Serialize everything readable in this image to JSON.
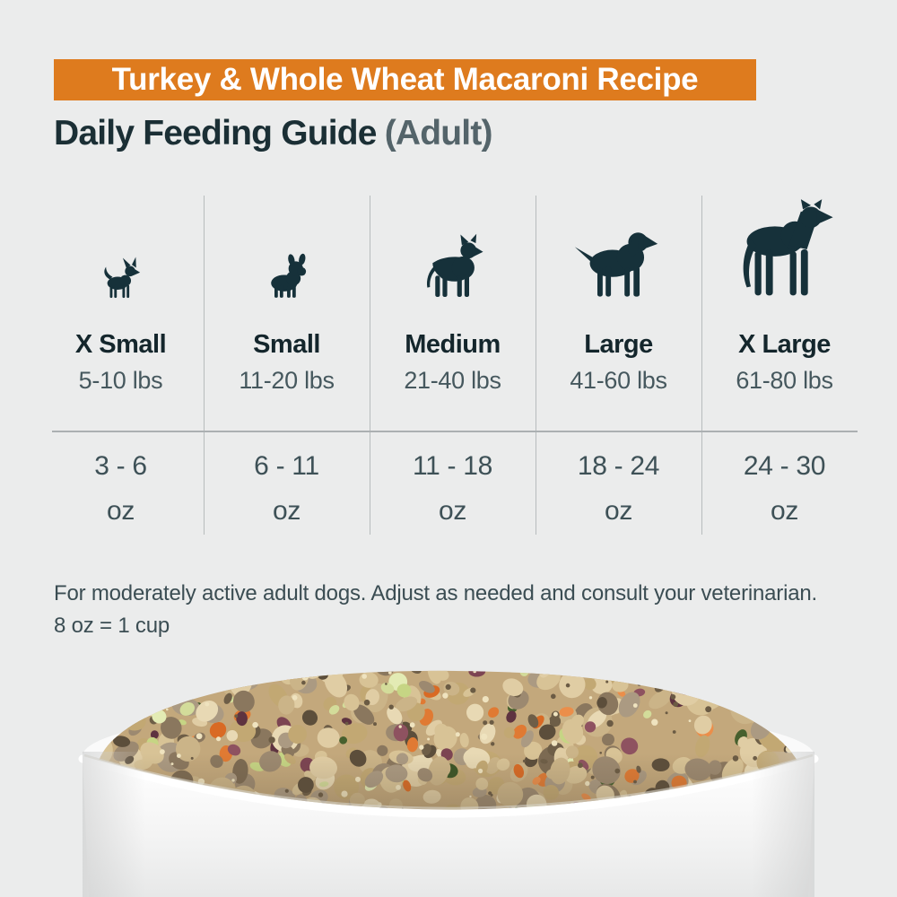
{
  "banner": {
    "title": "Turkey & Whole Wheat Macaroni Recipe"
  },
  "heading": {
    "main": "Daily Feeding Guide",
    "suffix": "(Adult)"
  },
  "feeding_table": {
    "columns": [
      {
        "size": "X Small",
        "weight": "5-10 lbs",
        "amount": "3 - 6",
        "unit": "oz",
        "icon": "chihuahua-icon"
      },
      {
        "size": "Small",
        "weight": "11-20 lbs",
        "amount": "6 - 11",
        "unit": "oz",
        "icon": "french-bulldog-icon"
      },
      {
        "size": "Medium",
        "weight": "21-40 lbs",
        "amount": "11 - 18",
        "unit": "oz",
        "icon": "pit-bull-icon"
      },
      {
        "size": "Large",
        "weight": "41-60 lbs",
        "amount": "18 - 24",
        "unit": "oz",
        "icon": "labrador-icon"
      },
      {
        "size": "X Large",
        "weight": "61-80 lbs",
        "amount": "24 - 30",
        "unit": "oz",
        "icon": "great-dane-icon"
      }
    ]
  },
  "footnote": {
    "line1": "For moderately active adult dogs. Adjust as needed and consult your veterinarian.",
    "line2": "8 oz = 1 cup"
  },
  "photo": {
    "alt": "White bowl filled with turkey and whole wheat macaroni dog food with carrot, zucchini and cranberry pieces",
    "palette": {
      "pasta": [
        "#D8C396",
        "#CBB488",
        "#E0CDA4",
        "#C2A873",
        "#E8D9B4"
      ],
      "meat": [
        "#9C8970",
        "#8A775E",
        "#AB9A82",
        "#7C6A52"
      ],
      "carrot": [
        "#E07A33",
        "#D96A24",
        "#EB8E4A"
      ],
      "zucchini_flesh": [
        "#D3DC9A",
        "#C6D584",
        "#E3EBB4"
      ],
      "zucchini_skin": [
        "#47602E",
        "#3A5526"
      ],
      "cranberry": [
        "#7C4452",
        "#5E3340",
        "#8E5260"
      ],
      "shadow": [
        "#6E5E47",
        "#5C4E3B"
      ]
    }
  },
  "colors": {
    "accent_orange": "#DE7B1E",
    "banner_text": "#FFFFFF",
    "heading_dark": "#1B2F35",
    "heading_muted": "#54646A",
    "silhouette": "#16313A",
    "divider_gray": "#B7BCBD",
    "background_gray": "#EBECEC",
    "bowl_white": "#FBFBFB"
  }
}
